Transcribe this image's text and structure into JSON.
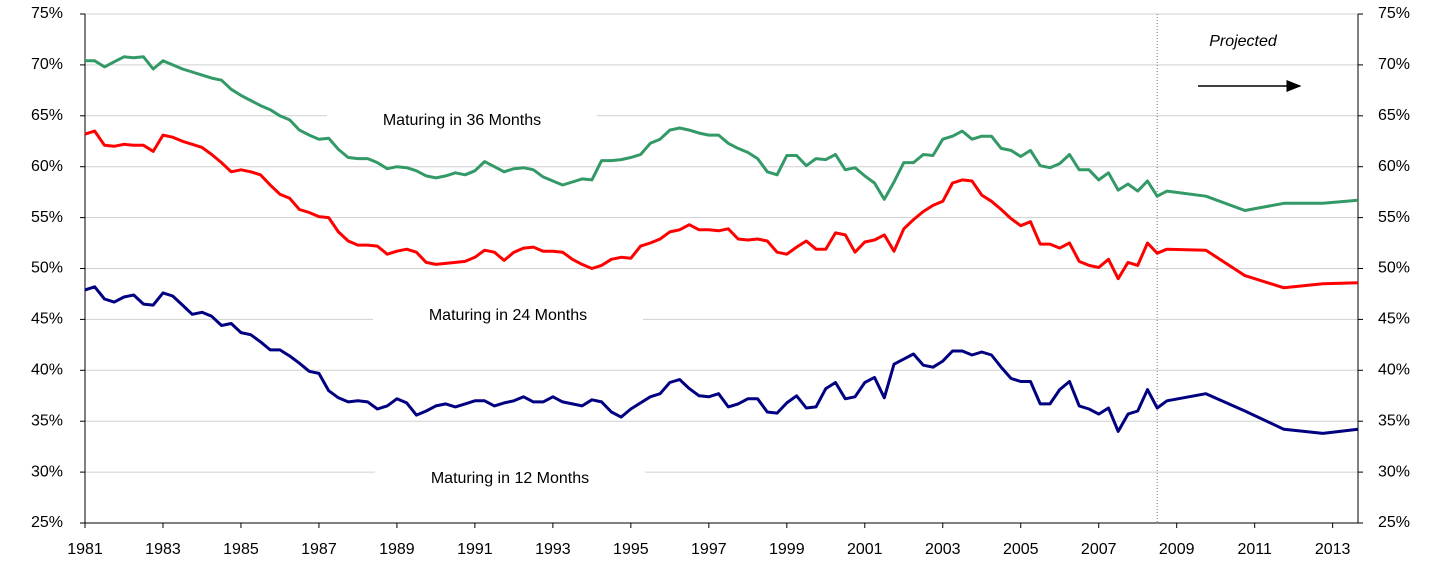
{
  "chart_data": {
    "type": "line",
    "x": [
      1981,
      1981.25,
      1981.5,
      1981.75,
      1982,
      1982.25,
      1982.5,
      1982.75,
      1983,
      1983.25,
      1983.5,
      1983.75,
      1984,
      1984.25,
      1984.5,
      1984.75,
      1985,
      1985.25,
      1985.5,
      1985.75,
      1986,
      1986.25,
      1986.5,
      1986.75,
      1987,
      1987.25,
      1987.5,
      1987.75,
      1988,
      1988.25,
      1988.5,
      1988.75,
      1989,
      1989.25,
      1989.5,
      1989.75,
      1990,
      1990.25,
      1990.5,
      1990.75,
      1991,
      1991.25,
      1991.5,
      1991.75,
      1992,
      1992.25,
      1992.5,
      1992.75,
      1993,
      1993.25,
      1993.5,
      1993.75,
      1994,
      1994.25,
      1994.5,
      1994.75,
      1995,
      1995.25,
      1995.5,
      1995.75,
      1996,
      1996.25,
      1996.5,
      1996.75,
      1997,
      1997.25,
      1997.5,
      1997.75,
      1998,
      1998.25,
      1998.5,
      1998.75,
      1999,
      1999.25,
      1999.5,
      1999.75,
      2000,
      2000.25,
      2000.5,
      2000.75,
      2001,
      2001.25,
      2001.5,
      2001.75,
      2002,
      2002.25,
      2002.5,
      2002.75,
      2003,
      2003.25,
      2003.5,
      2003.75,
      2004,
      2004.25,
      2004.5,
      2004.75,
      2005,
      2005.25,
      2005.5,
      2005.75,
      2006,
      2006.25,
      2006.5,
      2006.75,
      2007,
      2007.25,
      2007.5,
      2007.75,
      2008,
      2008.25,
      2008.5,
      2008.75,
      2009.75,
      2010.75,
      2011.75,
      2012.75,
      2013.65
    ],
    "series": [
      {
        "name": "Maturing in 36 Months",
        "color": "#339966",
        "values": [
          70.4,
          70.4,
          69.8,
          70.3,
          70.8,
          70.7,
          70.8,
          69.6,
          70.4,
          70.0,
          69.6,
          69.3,
          69.0,
          68.7,
          68.5,
          67.6,
          67.0,
          66.5,
          66.0,
          65.6,
          65.0,
          64.6,
          63.6,
          63.1,
          62.7,
          62.8,
          61.7,
          60.9,
          60.8,
          60.8,
          60.4,
          59.8,
          60.0,
          59.9,
          59.6,
          59.1,
          58.9,
          59.1,
          59.4,
          59.2,
          59.6,
          60.5,
          60.0,
          59.5,
          59.8,
          59.9,
          59.7,
          59.0,
          58.6,
          58.2,
          58.5,
          58.8,
          58.7,
          60.6,
          60.6,
          60.7,
          60.9,
          61.2,
          62.3,
          62.7,
          63.6,
          63.8,
          63.6,
          63.3,
          63.1,
          63.1,
          62.3,
          61.8,
          61.4,
          60.8,
          59.5,
          59.2,
          61.1,
          61.1,
          60.1,
          60.8,
          60.7,
          61.2,
          59.7,
          59.9,
          59.1,
          58.4,
          56.8,
          58.5,
          60.4,
          60.4,
          61.2,
          61.1,
          62.7,
          63.0,
          63.5,
          62.7,
          63.0,
          63.0,
          61.8,
          61.6,
          61.0,
          61.6,
          60.1,
          59.9,
          60.3,
          61.2,
          59.7,
          59.7,
          58.7,
          59.4,
          57.7,
          58.3,
          57.6,
          58.6,
          57.1,
          57.6,
          57.1,
          55.7,
          56.4,
          56.4,
          56.7
        ]
      },
      {
        "name": "Maturing in 24 Months",
        "color": "#ff0000",
        "values": [
          63.2,
          63.5,
          62.1,
          62.0,
          62.2,
          62.1,
          62.1,
          61.5,
          63.1,
          62.9,
          62.5,
          62.2,
          61.9,
          61.2,
          60.4,
          59.5,
          59.7,
          59.5,
          59.2,
          58.2,
          57.3,
          56.9,
          55.8,
          55.5,
          55.1,
          55.0,
          53.6,
          52.7,
          52.3,
          52.3,
          52.2,
          51.4,
          51.7,
          51.9,
          51.6,
          50.6,
          50.4,
          50.5,
          50.6,
          50.7,
          51.1,
          51.8,
          51.6,
          50.8,
          51.6,
          52.0,
          52.1,
          51.7,
          51.7,
          51.6,
          50.9,
          50.4,
          50.0,
          50.3,
          50.9,
          51.1,
          51.0,
          52.2,
          52.5,
          52.9,
          53.6,
          53.8,
          54.3,
          53.8,
          53.8,
          53.7,
          53.9,
          52.9,
          52.8,
          52.9,
          52.7,
          51.6,
          51.4,
          52.1,
          52.7,
          51.9,
          51.9,
          53.5,
          53.3,
          51.6,
          52.6,
          52.8,
          53.3,
          51.7,
          53.9,
          54.8,
          55.6,
          56.2,
          56.6,
          58.4,
          58.7,
          58.6,
          57.2,
          56.6,
          55.8,
          54.9,
          54.2,
          54.6,
          52.4,
          52.4,
          52.0,
          52.5,
          50.7,
          50.3,
          50.1,
          50.9,
          49.0,
          50.6,
          50.3,
          52.5,
          51.5,
          51.9,
          51.8,
          49.3,
          48.1,
          48.5,
          48.6
        ]
      },
      {
        "name": "Maturing in 12 Months",
        "color": "#000080",
        "values": [
          47.9,
          48.2,
          47.0,
          46.7,
          47.2,
          47.4,
          46.5,
          46.4,
          47.6,
          47.3,
          46.4,
          45.5,
          45.7,
          45.3,
          44.4,
          44.6,
          43.7,
          43.5,
          42.8,
          42.0,
          42.0,
          41.4,
          40.7,
          39.9,
          39.7,
          38.0,
          37.3,
          36.9,
          37.0,
          36.9,
          36.2,
          36.5,
          37.2,
          36.8,
          35.6,
          36.0,
          36.5,
          36.7,
          36.4,
          36.7,
          37.0,
          37.0,
          36.5,
          36.8,
          37.0,
          37.4,
          36.9,
          36.9,
          37.4,
          36.9,
          36.7,
          36.5,
          37.1,
          36.9,
          35.9,
          35.4,
          36.2,
          36.8,
          37.4,
          37.7,
          38.8,
          39.1,
          38.2,
          37.5,
          37.4,
          37.7,
          36.4,
          36.7,
          37.2,
          37.2,
          35.9,
          35.8,
          36.8,
          37.5,
          36.3,
          36.4,
          38.2,
          38.8,
          37.2,
          37.4,
          38.8,
          39.3,
          37.3,
          40.6,
          41.1,
          41.6,
          40.5,
          40.3,
          40.9,
          41.9,
          41.9,
          41.5,
          41.8,
          41.5,
          40.3,
          39.2,
          38.9,
          38.9,
          36.7,
          36.7,
          38.1,
          38.9,
          36.5,
          36.2,
          35.7,
          36.3,
          34.0,
          35.7,
          36.0,
          38.1,
          36.3,
          37.0,
          37.7,
          36.0,
          34.2,
          33.8,
          34.2
        ]
      }
    ],
    "annotations": [
      "Projected"
    ],
    "projection_start": 2008.5,
    "xlim": [
      1981,
      2013.65
    ],
    "xticks": [
      1981,
      1983,
      1985,
      1987,
      1989,
      1991,
      1993,
      1995,
      1997,
      1999,
      2001,
      2003,
      2005,
      2007,
      2009,
      2011,
      2013
    ],
    "ylim": [
      25,
      75
    ],
    "yticks": [
      {
        "value": 25,
        "label": "25%"
      },
      {
        "value": 30,
        "label": "30%"
      },
      {
        "value": 35,
        "label": "35%"
      },
      {
        "value": 40,
        "label": "40%"
      },
      {
        "value": 45,
        "label": "45%"
      },
      {
        "value": 50,
        "label": "50%"
      },
      {
        "value": 55,
        "label": "55%"
      },
      {
        "value": 60,
        "label": "60%"
      },
      {
        "value": 65,
        "label": "65%"
      },
      {
        "value": 70,
        "label": "70%"
      },
      {
        "value": 75,
        "label": "75%"
      }
    ],
    "y2lim": [
      25,
      75
    ],
    "y2ticks": [
      {
        "value": 25,
        "label": "25%"
      },
      {
        "value": 30,
        "label": "30%"
      },
      {
        "value": 35,
        "label": "35%"
      },
      {
        "value": 40,
        "label": "40%"
      },
      {
        "value": 45,
        "label": "45%"
      },
      {
        "value": 50,
        "label": "50%"
      },
      {
        "value": 55,
        "label": "55%"
      },
      {
        "value": 60,
        "label": "60%"
      },
      {
        "value": 65,
        "label": "65%"
      },
      {
        "value": 70,
        "label": "70%"
      },
      {
        "value": 75,
        "label": "75%"
      }
    ],
    "grid": true
  }
}
